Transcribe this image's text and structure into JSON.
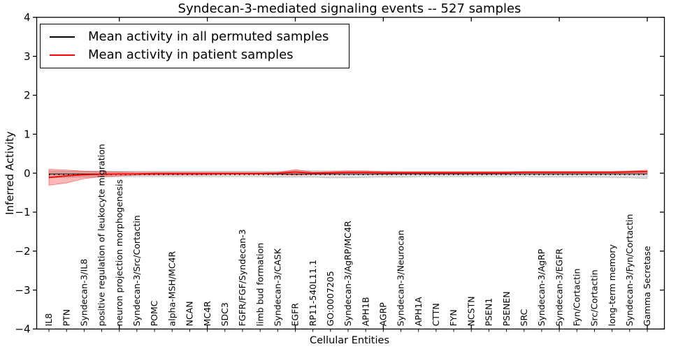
{
  "figure": {
    "title": "Syndecan-3-mediated signaling events -- 527 samples",
    "x_axis_label": "Cellular Entities",
    "y_axis_label": "Inferred Activity"
  },
  "chart_data": {
    "type": "line",
    "title": "Syndecan-3-mediated signaling events -- 527 samples",
    "xlabel": "Cellular Entities",
    "ylabel": "Inferred Activity",
    "ylim": [
      -4,
      4
    ],
    "yticks": [
      -4,
      -3,
      -2,
      -1,
      0,
      1,
      2,
      3,
      4
    ],
    "grid": false,
    "legend_position": "upper left",
    "x_tick_label_rotation": 90,
    "categories": [
      "IL8",
      "PTN",
      "Syndecan-3/IL8",
      "positive regulation of leukocyte migration",
      "neuron projection morphogenesis",
      "Syndecan-3/Src/Cortactin",
      "POMC",
      "alpha-MSH/MC4R",
      "NCAN",
      "MC4R",
      "SDC3",
      "FGFR/FGF/Syndecan-3",
      "limb bud formation",
      "Syndecan-3/CASK",
      "EGFR",
      "RP11-540L11.1",
      "GO:0007205",
      "Syndecan-3/AgRP/MC4R",
      "APH1B",
      "AGRP",
      "Syndecan-3/Neurocan",
      "APH1A",
      "CTTN",
      "FYN",
      "NCSTN",
      "PSEN1",
      "PSENEN",
      "SRC",
      "Syndecan-3/AgRP",
      "Syndecan-3/EGFR",
      "Fyn/Cortactin",
      "Src/Cortactin",
      "long-term memory",
      "Syndecan-3/Fyn/Cortactin",
      "Gamma Secretase"
    ],
    "series": [
      {
        "name": "Mean activity in all permuted samples",
        "color": "#000000",
        "style": "dotted",
        "values": [
          -0.02,
          -0.02,
          -0.02,
          -0.02,
          -0.02,
          -0.02,
          -0.02,
          -0.02,
          -0.02,
          -0.02,
          -0.02,
          -0.02,
          -0.02,
          -0.02,
          -0.02,
          -0.02,
          -0.02,
          -0.02,
          -0.02,
          -0.02,
          -0.02,
          -0.02,
          -0.02,
          -0.02,
          -0.02,
          -0.02,
          -0.02,
          -0.02,
          -0.02,
          -0.02,
          -0.02,
          -0.02,
          -0.02,
          -0.02,
          -0.02
        ]
      },
      {
        "name": "Mean activity in patient samples",
        "color": "#ff0000",
        "style": "solid",
        "values": [
          -0.11,
          -0.07,
          -0.04,
          -0.03,
          -0.02,
          -0.02,
          -0.01,
          -0.01,
          -0.01,
          -0.01,
          -0.01,
          -0.01,
          -0.01,
          0,
          0.03,
          0,
          0.01,
          0.02,
          0.02,
          0.01,
          0.01,
          0.01,
          0.01,
          0.01,
          0.01,
          0.01,
          0.01,
          0.02,
          0.02,
          0.02,
          0.02,
          0.02,
          0.02,
          0.03,
          0.04
        ]
      }
    ],
    "bands": [
      {
        "name": "permuted-samples-std-band",
        "color": "#999999",
        "opacity": 0.35,
        "upper": [
          0.06,
          0.05,
          0.05,
          0.05,
          0.05,
          0.05,
          0.05,
          0.05,
          0.05,
          0.05,
          0.05,
          0.05,
          0.05,
          0.05,
          0.06,
          0.06,
          0.06,
          0.06,
          0.05,
          0.05,
          0.05,
          0.05,
          0.05,
          0.05,
          0.05,
          0.05,
          0.05,
          0.05,
          0.05,
          0.05,
          0.05,
          0.05,
          0.05,
          0.06,
          0.06
        ],
        "lower": [
          -0.12,
          -0.11,
          -0.1,
          -0.1,
          -0.09,
          -0.09,
          -0.09,
          -0.09,
          -0.09,
          -0.09,
          -0.09,
          -0.09,
          -0.09,
          -0.1,
          -0.1,
          -0.1,
          -0.12,
          -0.12,
          -0.11,
          -0.1,
          -0.1,
          -0.09,
          -0.09,
          -0.09,
          -0.09,
          -0.09,
          -0.09,
          -0.09,
          -0.1,
          -0.1,
          -0.1,
          -0.1,
          -0.11,
          -0.12,
          -0.14
        ]
      },
      {
        "name": "patient-samples-std-band",
        "color": "#ff0000",
        "opacity": 0.28,
        "upper": [
          0.1,
          0.08,
          0.05,
          0.04,
          0.03,
          0.02,
          0.02,
          0.02,
          0.02,
          0.02,
          0.02,
          0.02,
          0.02,
          0.02,
          0.09,
          0.03,
          0.04,
          0.06,
          0.06,
          0.04,
          0.03,
          0.03,
          0.03,
          0.03,
          0.03,
          0.03,
          0.03,
          0.04,
          0.04,
          0.04,
          0.04,
          0.04,
          0.04,
          0.05,
          0.08
        ],
        "lower": [
          -0.31,
          -0.25,
          -0.14,
          -0.09,
          -0.07,
          -0.05,
          -0.04,
          -0.04,
          -0.04,
          -0.04,
          -0.03,
          -0.03,
          -0.03,
          -0.03,
          -0.05,
          -0.03,
          -0.03,
          -0.03,
          -0.03,
          -0.03,
          -0.02,
          -0.02,
          -0.02,
          -0.02,
          -0.02,
          -0.02,
          -0.02,
          -0.02,
          -0.02,
          -0.02,
          -0.02,
          -0.02,
          -0.02,
          -0.02,
          -0.01
        ]
      }
    ]
  }
}
